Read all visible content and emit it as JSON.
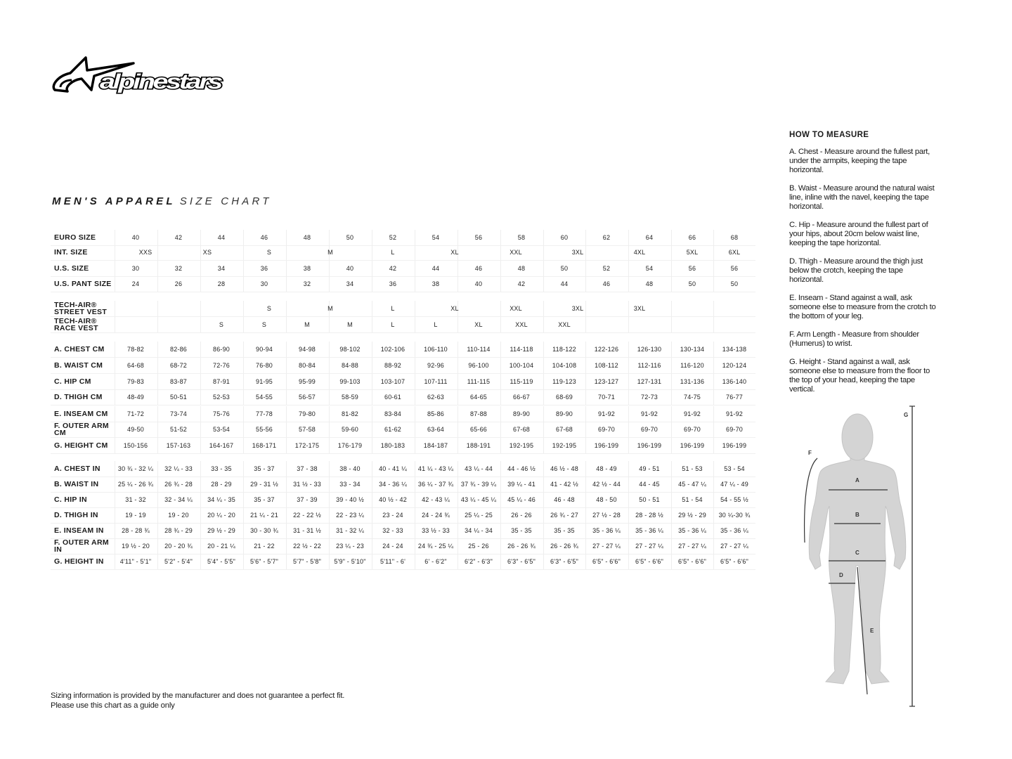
{
  "logo": {
    "text": "alpinestars"
  },
  "title": {
    "bold": "MEN'S APPAREL",
    "light": "SIZE CHART"
  },
  "table": {
    "size_rows": [
      {
        "label": "EURO SIZE",
        "values": [
          "40",
          "42",
          "44",
          "46",
          "48",
          "50",
          "52",
          "54",
          "56",
          "58",
          "60",
          "62",
          "64",
          "66",
          "68"
        ]
      },
      {
        "label": "INT. SIZE",
        "values": [
          "XXS",
          "XS",
          "S",
          "M",
          "L",
          "XL",
          "XXL",
          "3XL",
          "4XL",
          "5XL",
          "6XL"
        ]
      },
      {
        "label": "U.S. SIZE",
        "values": [
          "30",
          "32",
          "34",
          "36",
          "38",
          "40",
          "42",
          "44",
          "46",
          "48",
          "50",
          "52",
          "54",
          "56",
          "56"
        ]
      },
      {
        "label": "U.S. PANT SIZE",
        "values": [
          "24",
          "26",
          "28",
          "30",
          "32",
          "34",
          "36",
          "38",
          "40",
          "42",
          "44",
          "46",
          "48",
          "50",
          "50"
        ]
      }
    ],
    "vest_rows": [
      {
        "label": "TECH-AIR® STREET VEST",
        "values": [
          "S",
          "M",
          "L",
          "XL",
          "XXL",
          "3XL",
          "3XL"
        ]
      },
      {
        "label": "TECH-AIR® RACE VEST",
        "values": [
          "S",
          "S",
          "M",
          "M",
          "L",
          "L",
          "XL",
          "XXL",
          "XXL"
        ]
      }
    ],
    "cm_rows": [
      {
        "label": "A. CHEST CM",
        "values": [
          "78-82",
          "82-86",
          "86-90",
          "90-94",
          "94-98",
          "98-102",
          "102-106",
          "106-110",
          "110-114",
          "114-118",
          "118-122",
          "122-126",
          "126-130",
          "130-134",
          "134-138"
        ]
      },
      {
        "label": "B. WAIST CM",
        "values": [
          "64-68",
          "68-72",
          "72-76",
          "76-80",
          "80-84",
          "84-88",
          "88-92",
          "92-96",
          "96-100",
          "100-104",
          "104-108",
          "108-112",
          "112-116",
          "116-120",
          "120-124"
        ]
      },
      {
        "label": "C. HIP CM",
        "values": [
          "79-83",
          "83-87",
          "87-91",
          "91-95",
          "95-99",
          "99-103",
          "103-107",
          "107-111",
          "111-115",
          "115-119",
          "119-123",
          "123-127",
          "127-131",
          "131-136",
          "136-140"
        ]
      },
      {
        "label": "D. THIGH CM",
        "values": [
          "48-49",
          "50-51",
          "52-53",
          "54-55",
          "56-57",
          "58-59",
          "60-61",
          "62-63",
          "64-65",
          "66-67",
          "68-69",
          "70-71",
          "72-73",
          "74-75",
          "76-77"
        ]
      },
      {
        "label": "E. INSEAM CM",
        "values": [
          "71-72",
          "73-74",
          "75-76",
          "77-78",
          "79-80",
          "81-82",
          "83-84",
          "85-86",
          "87-88",
          "89-90",
          "89-90",
          "91-92",
          "91-92",
          "91-92",
          "91-92"
        ]
      },
      {
        "label": "F. OUTER ARM CM",
        "values": [
          "49-50",
          "51-52",
          "53-54",
          "55-56",
          "57-58",
          "59-60",
          "61-62",
          "63-64",
          "65-66",
          "67-68",
          "67-68",
          "69-70",
          "69-70",
          "69-70",
          "69-70"
        ]
      },
      {
        "label": "G. HEIGHT CM",
        "values": [
          "150-156",
          "157-163",
          "164-167",
          "168-171",
          "172-175",
          "176-179",
          "180-183",
          "184-187",
          "188-191",
          "192-195",
          "192-195",
          "196-199",
          "196-199",
          "196-199",
          "196-199"
        ]
      }
    ],
    "in_rows": [
      {
        "label": "A. CHEST IN",
        "values": [
          "30 ¾ - 32 ¼",
          "32 ¼ - 33",
          "33  - 35",
          "35  - 37",
          "37 - 38",
          "38  - 40",
          "40  - 41 ¼",
          "41 ¼ - 43 ¼",
          "43 ¼ - 44",
          "44  - 46 ½",
          "46 ½ - 48",
          "48 - 49",
          "49  - 51",
          "51 - 53",
          "53  - 54"
        ]
      },
      {
        "label": "B. WAIST IN",
        "values": [
          "25 ¼ - 26 ¾",
          "26 ¾ - 28",
          "28  - 29",
          "29  - 31 ½",
          "31 ½ - 33",
          "33  - 34",
          "34  - 36 ¼",
          "36 ¼ - 37 ¾",
          "37 ¾ - 39 ¼",
          "39 ¼ - 41",
          "41 - 42 ½",
          "42 ½ - 44",
          "44  - 45",
          "45  - 47 ¼",
          "47 ¼ - 49"
        ]
      },
      {
        "label": "C. HIP IN",
        "values": [
          "31  - 32",
          "32  - 34 ¼",
          "34 ¼ - 35",
          "35  - 37",
          "37  - 39",
          "39 - 40 ½",
          "40 ½ - 42",
          "42  - 43 ¼",
          "43 ¼ - 45 ¼",
          "45 ¼ - 46",
          "46  - 48",
          "48  - 50",
          "50 - 51",
          "51  - 54",
          "54  - 55 ½"
        ]
      },
      {
        "label": "D. THIGH IN",
        "values": [
          "19  - 19",
          "19  - 20",
          "20 ¼ - 20",
          "21 ¼ - 21",
          "22 - 22 ½",
          "22  - 23 ¼",
          "23  - 24",
          "24  - 24 ¾",
          "25 ¼ - 25",
          "26 - 26",
          "26 ¾ - 27",
          "27 ½ - 28",
          "28  - 28 ½",
          "29 ½ - 29",
          "30 ¼-30 ¾"
        ]
      },
      {
        "label": "E. INSEAM IN",
        "values": [
          "28 - 28 ¾",
          "28 ¾ - 29",
          "29 ½ - 29",
          "30  - 30 ¾",
          "31  - 31 ½",
          "31  - 32 ¼",
          "32  - 33",
          "33 ½ - 33",
          "34 ¼ - 34",
          "35 - 35",
          "35 - 35",
          "35  - 36 ¼",
          "35  - 36 ¼",
          "35  - 36 ¼",
          "35  - 36 ¼"
        ]
      },
      {
        "label": "F. OUTER ARM IN",
        "values": [
          "19 ½ - 20",
          "20  - 20 ¾",
          "20  - 21 ¼",
          "21  - 22",
          "22 ½ - 22",
          "23 ¼ - 23",
          "24 - 24",
          "24 ¾ - 25 ¼",
          "25  - 26",
          "26  - 26 ¾",
          "26  - 26 ¾",
          "27  - 27 ¼",
          "27  - 27 ¼",
          "27  - 27 ¼",
          "27  - 27 ¼"
        ]
      },
      {
        "label": "G. HEIGHT IN",
        "values": [
          "4'11\" - 5'1\"",
          "5'2\" - 5'4\"",
          "5'4\" - 5'5\"",
          "5'6\" - 5'7\"",
          "5'7\" - 5'8\"",
          "5'9\" - 5'10\"",
          "5'11\" - 6'",
          "6' - 6'2\"",
          "6'2\" - 6'3\"",
          "6'3\" - 6'5\"",
          "6'3\" - 6'5\"",
          "6'5\" - 6'6\"",
          "6'5\" - 6'6\"",
          "6'5\" - 6'6\"",
          "6'5\" - 6'6\""
        ]
      }
    ]
  },
  "how_to_measure": {
    "heading": "HOW TO MEASURE",
    "items": [
      "A. Chest - Measure around the fullest part, under the armpits, keeping the tape horizontal.",
      "B. Waist - Measure around the natural waist line, inline with the navel, keeping the tape horizontal.",
      "C. Hip - Measure around the fullest part of your hips, about 20cm below waist line, keeping the tape horizontal.",
      "D. Thigh - Measure around the thigh just below the crotch, keeping the tape horizontal.",
      "E. Inseam - Stand against a wall, ask someone else to measure from the crotch to the bottom of your leg.",
      "F. Arm Length - Measure from shoulder (Humerus) to wrist.",
      "G. Height - Stand against a wall, ask someone else to measure from the floor to the top of your head, keeping the tape vertical."
    ]
  },
  "figure": {
    "labels": {
      "a": "A",
      "b": "B",
      "c": "C",
      "d": "D",
      "e": "E",
      "f": "F",
      "g": "G"
    },
    "body_color": "#d4d4d4"
  },
  "footer": {
    "line1": "Sizing information is provided by the manufacturer and does not guarantee a perfect fit.",
    "line2": "Please use this chart as a guide only"
  }
}
